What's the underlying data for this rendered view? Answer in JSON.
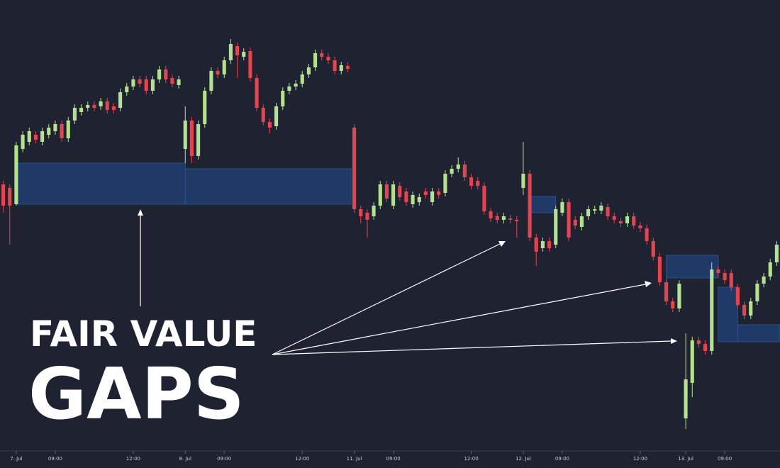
{
  "chart_data": {
    "type": "candlestick",
    "headline": [
      "FAIR VALUE",
      "GAPS"
    ],
    "up_color": "#b3e28f",
    "down_color": "#e5434e",
    "zone_color": "#1f3a66",
    "zone_edge_color": "#2d5b9a",
    "xlim": [
      -0.5,
      119.5
    ],
    "ylim": [
      0,
      660
    ],
    "xticks": [
      {
        "value": 2,
        "label": "7. Jul"
      },
      {
        "value": 8,
        "label": "09:00"
      },
      {
        "value": 20,
        "label": "12:00"
      },
      {
        "value": 28,
        "label": "8. Jul"
      },
      {
        "value": 34,
        "label": "09:00"
      },
      {
        "value": 46,
        "label": "12:00"
      },
      {
        "value": 54,
        "label": "11. Jul"
      },
      {
        "value": 60,
        "label": "09:00"
      },
      {
        "value": 72,
        "label": "12:00"
      },
      {
        "value": 80,
        "label": "12. Jul"
      },
      {
        "value": 86,
        "label": "09:00"
      },
      {
        "value": 98,
        "label": "12:00"
      },
      {
        "value": 105,
        "label": "13. Jul"
      },
      {
        "value": 111,
        "label": "09:00"
      }
    ],
    "candles": [
      [
        400,
        405,
        360,
        370
      ],
      [
        395,
        400,
        315,
        370
      ],
      [
        372,
        460,
        370,
        455
      ],
      [
        450,
        475,
        445,
        470
      ],
      [
        460,
        480,
        455,
        475
      ],
      [
        470,
        475,
        458,
        463
      ],
      [
        460,
        480,
        455,
        475
      ],
      [
        470,
        485,
        465,
        480
      ],
      [
        475,
        490,
        470,
        485
      ],
      [
        485,
        490,
        460,
        465
      ],
      [
        465,
        495,
        460,
        490
      ],
      [
        490,
        513,
        485,
        508
      ],
      [
        502,
        513,
        497,
        508
      ],
      [
        508,
        517,
        503,
        512
      ],
      [
        512,
        517,
        503,
        508
      ],
      [
        510,
        522,
        505,
        517
      ],
      [
        517,
        522,
        500,
        505
      ],
      [
        510,
        515,
        500,
        505
      ],
      [
        508,
        535,
        503,
        530
      ],
      [
        530,
        543,
        525,
        538
      ],
      [
        538,
        553,
        533,
        548
      ],
      [
        548,
        553,
        537,
        542
      ],
      [
        548,
        553,
        527,
        532
      ],
      [
        532,
        553,
        527,
        548
      ],
      [
        548,
        567,
        543,
        562
      ],
      [
        562,
        567,
        543,
        548
      ],
      [
        550,
        555,
        537,
        542
      ],
      [
        540,
        553,
        535,
        548
      ],
      [
        450,
        510,
        430,
        490
      ],
      [
        490,
        495,
        430,
        440
      ],
      [
        440,
        490,
        435,
        485
      ],
      [
        485,
        537,
        480,
        532
      ],
      [
        532,
        565,
        527,
        560
      ],
      [
        560,
        565,
        550,
        555
      ],
      [
        555,
        580,
        550,
        575
      ],
      [
        575,
        605,
        570,
        598
      ],
      [
        595,
        600,
        550,
        582
      ],
      [
        580,
        592,
        575,
        587
      ],
      [
        588,
        593,
        545,
        550
      ],
      [
        550,
        555,
        503,
        508
      ],
      [
        508,
        513,
        483,
        488
      ],
      [
        488,
        493,
        472,
        480
      ],
      [
        482,
        515,
        477,
        510
      ],
      [
        510,
        537,
        505,
        532
      ],
      [
        532,
        543,
        527,
        538
      ],
      [
        538,
        547,
        533,
        542
      ],
      [
        542,
        560,
        537,
        555
      ],
      [
        555,
        570,
        550,
        565
      ],
      [
        565,
        590,
        560,
        585
      ],
      [
        585,
        590,
        575,
        580
      ],
      [
        580,
        585,
        570,
        575
      ],
      [
        575,
        580,
        555,
        560
      ],
      [
        560,
        573,
        555,
        568
      ],
      [
        567,
        572,
        558,
        563
      ],
      [
        480,
        485,
        360,
        365
      ],
      [
        365,
        370,
        345,
        355
      ],
      [
        360,
        365,
        325,
        350
      ],
      [
        355,
        375,
        350,
        370
      ],
      [
        370,
        405,
        365,
        400
      ],
      [
        400,
        405,
        375,
        380
      ],
      [
        370,
        405,
        365,
        400
      ],
      [
        398,
        403,
        377,
        382
      ],
      [
        390,
        395,
        370,
        375
      ],
      [
        372,
        390,
        367,
        385
      ],
      [
        375,
        387,
        370,
        382
      ],
      [
        390,
        395,
        380,
        385
      ],
      [
        375,
        395,
        370,
        390
      ],
      [
        390,
        395,
        380,
        385
      ],
      [
        388,
        420,
        383,
        415
      ],
      [
        415,
        427,
        410,
        422
      ],
      [
        422,
        438,
        417,
        428
      ],
      [
        428,
        433,
        405,
        410
      ],
      [
        410,
        415,
        393,
        398
      ],
      [
        405,
        410,
        393,
        398
      ],
      [
        398,
        403,
        357,
        362
      ],
      [
        362,
        367,
        347,
        352
      ],
      [
        355,
        360,
        345,
        350
      ],
      [
        350,
        360,
        345,
        355
      ],
      [
        352,
        357,
        345,
        350
      ],
      [
        350,
        355,
        325,
        348
      ],
      [
        395,
        460,
        385,
        415
      ],
      [
        415,
        420,
        320,
        325
      ],
      [
        325,
        330,
        285,
        305
      ],
      [
        310,
        325,
        305,
        320
      ],
      [
        320,
        325,
        305,
        310
      ],
      [
        315,
        370,
        310,
        365
      ],
      [
        360,
        380,
        355,
        375
      ],
      [
        375,
        380,
        320,
        325
      ],
      [
        350,
        355,
        337,
        342
      ],
      [
        340,
        360,
        335,
        355
      ],
      [
        355,
        370,
        350,
        365
      ],
      [
        363,
        370,
        358,
        365
      ],
      [
        363,
        375,
        358,
        370
      ],
      [
        368,
        373,
        350,
        355
      ],
      [
        355,
        360,
        345,
        350
      ],
      [
        348,
        353,
        340,
        345
      ],
      [
        345,
        360,
        340,
        355
      ],
      [
        355,
        360,
        337,
        342
      ],
      [
        342,
        347,
        333,
        338
      ],
      [
        338,
        343,
        315,
        320
      ],
      [
        320,
        325,
        293,
        298
      ],
      [
        298,
        303,
        257,
        262
      ],
      [
        262,
        267,
        230,
        235
      ],
      [
        235,
        240,
        220,
        225
      ],
      [
        225,
        265,
        220,
        260
      ],
      [
        70,
        190,
        55,
        125
      ],
      [
        120,
        185,
        100,
        180
      ],
      [
        180,
        185,
        170,
        175
      ],
      [
        175,
        180,
        160,
        165
      ],
      [
        165,
        290,
        160,
        280
      ],
      [
        280,
        285,
        270,
        275
      ],
      [
        275,
        280,
        260,
        265
      ],
      [
        275,
        280,
        250,
        255
      ],
      [
        255,
        260,
        225,
        230
      ],
      [
        230,
        235,
        210,
        215
      ],
      [
        215,
        240,
        210,
        235
      ],
      [
        235,
        265,
        230,
        260
      ],
      [
        260,
        275,
        255,
        270
      ],
      [
        270,
        295,
        265,
        290
      ],
      [
        290,
        320,
        285,
        315
      ]
    ],
    "zones": [
      {
        "start": 2,
        "end": 28,
        "low": 372,
        "high": 430
      },
      {
        "start": 28,
        "end": 53.5,
        "low": 372,
        "high": 422
      },
      {
        "start": 81,
        "end": 85,
        "low": 360,
        "high": 383
      },
      {
        "start": 102,
        "end": 110,
        "low": 268,
        "high": 300
      },
      {
        "start": 110,
        "end": 113,
        "low": 178,
        "high": 255
      },
      {
        "start": 113,
        "end": 119.5,
        "low": 178,
        "high": 202
      }
    ]
  }
}
